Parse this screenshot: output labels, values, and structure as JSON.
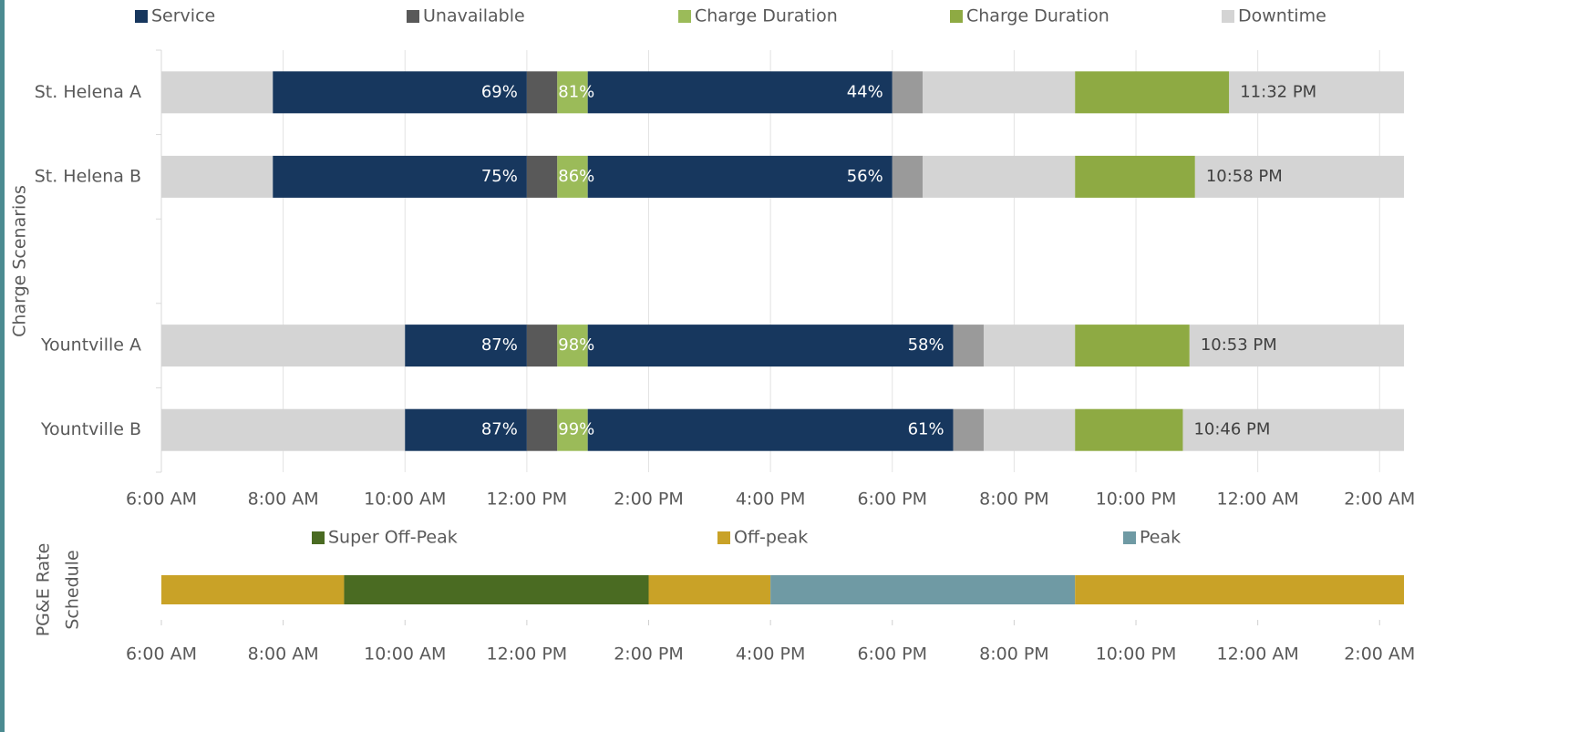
{
  "chart_data": [
    {
      "type": "timeline",
      "series": [
        {
          "name": "Service",
          "color": "#17375e"
        },
        {
          "name": "Unavailable",
          "color": "#595959"
        },
        {
          "name": "Charge Duration",
          "color": "#9bbb59"
        },
        {
          "name": "Charge Duration",
          "color": "#8eaa43"
        },
        {
          "name": "Downtime",
          "color": "#d4d4d4"
        }
      ],
      "ylabel": [
        "Charge Scenarios"
      ],
      "categories": [
        "St. Helena A",
        "St. Helena B",
        null,
        "Yountville A",
        "Yountville B"
      ],
      "xlim": [
        6,
        26.4
      ],
      "xticks": [
        {
          "value": 6,
          "label": "6:00 AM"
        },
        {
          "value": 8,
          "label": "8:00 AM"
        },
        {
          "value": 10,
          "label": "10:00 AM"
        },
        {
          "value": 12,
          "label": "12:00 PM"
        },
        {
          "value": 14,
          "label": "2:00 PM"
        },
        {
          "value": 16,
          "label": "4:00 PM"
        },
        {
          "value": 18,
          "label": "6:00 PM"
        },
        {
          "value": 20,
          "label": "8:00 PM"
        },
        {
          "value": 22,
          "label": "10:00 PM"
        },
        {
          "value": 24,
          "label": "12:00 AM"
        },
        {
          "value": 26,
          "label": "2:00 AM"
        }
      ],
      "grid": true,
      "rows": [
        [
          {
            "s": 4,
            "start": 6,
            "end": 7.83
          },
          {
            "s": 0,
            "start": 7.83,
            "end": 12,
            "label": "69%"
          },
          {
            "s": 1,
            "start": 12,
            "end": 12.5
          },
          {
            "s": 2,
            "start": 12.5,
            "end": 13,
            "label": "81%"
          },
          {
            "s": 0,
            "start": 13,
            "end": 18,
            "label": "44%"
          },
          {
            "s": 1,
            "start": 18,
            "end": 18.5,
            "color": "#9a9a9a"
          },
          {
            "s": 4,
            "start": 18.5,
            "end": 21
          },
          {
            "s": 3,
            "start": 21,
            "end": 23.53,
            "label": "11:32 PM"
          },
          {
            "s": 4,
            "start": 23.53,
            "end": 26.4
          }
        ],
        [
          {
            "s": 4,
            "start": 6,
            "end": 7.83
          },
          {
            "s": 0,
            "start": 7.83,
            "end": 12,
            "label": "75%"
          },
          {
            "s": 1,
            "start": 12,
            "end": 12.5
          },
          {
            "s": 2,
            "start": 12.5,
            "end": 13,
            "label": "86%"
          },
          {
            "s": 0,
            "start": 13,
            "end": 18,
            "label": "56%"
          },
          {
            "s": 1,
            "start": 18,
            "end": 18.5,
            "color": "#9a9a9a"
          },
          {
            "s": 4,
            "start": 18.5,
            "end": 21
          },
          {
            "s": 3,
            "start": 21,
            "end": 22.97,
            "label": "10:58 PM"
          },
          {
            "s": 4,
            "start": 22.97,
            "end": 26.4
          }
        ],
        [],
        [
          {
            "s": 4,
            "start": 6,
            "end": 10
          },
          {
            "s": 0,
            "start": 10,
            "end": 12,
            "label": "87%"
          },
          {
            "s": 1,
            "start": 12,
            "end": 12.5
          },
          {
            "s": 2,
            "start": 12.5,
            "end": 13,
            "label": "98%"
          },
          {
            "s": 0,
            "start": 13,
            "end": 19,
            "label": "58%"
          },
          {
            "s": 1,
            "start": 19,
            "end": 19.5,
            "color": "#9a9a9a"
          },
          {
            "s": 4,
            "start": 19.5,
            "end": 21
          },
          {
            "s": 3,
            "start": 21,
            "end": 22.88,
            "label": "10:53 PM"
          },
          {
            "s": 4,
            "start": 22.88,
            "end": 26.4
          }
        ],
        [
          {
            "s": 4,
            "start": 6,
            "end": 10
          },
          {
            "s": 0,
            "start": 10,
            "end": 12,
            "label": "87%"
          },
          {
            "s": 1,
            "start": 12,
            "end": 12.5
          },
          {
            "s": 2,
            "start": 12.5,
            "end": 13,
            "label": "99%"
          },
          {
            "s": 0,
            "start": 13,
            "end": 19,
            "label": "61%"
          },
          {
            "s": 1,
            "start": 19,
            "end": 19.5,
            "color": "#9a9a9a"
          },
          {
            "s": 4,
            "start": 19.5,
            "end": 21
          },
          {
            "s": 3,
            "start": 21,
            "end": 22.77,
            "label": "10:46 PM"
          },
          {
            "s": 4,
            "start": 22.77,
            "end": 26.4
          }
        ]
      ]
    },
    {
      "type": "timeline",
      "series": [
        {
          "name": "Super Off-Peak",
          "color": "#4a6b22"
        },
        {
          "name": "Off-peak",
          "color": "#c9a227"
        },
        {
          "name": "Peak",
          "color": "#6f9aa4"
        }
      ],
      "ylabel": [
        "PG&E Rate",
        "Schedule"
      ],
      "categories": [
        null
      ],
      "xlim": [
        6,
        26.4
      ],
      "xticks": [
        {
          "value": 6,
          "label": "6:00 AM"
        },
        {
          "value": 8,
          "label": "8:00 AM"
        },
        {
          "value": 10,
          "label": "10:00 AM"
        },
        {
          "value": 12,
          "label": "12:00 PM"
        },
        {
          "value": 14,
          "label": "2:00 PM"
        },
        {
          "value": 16,
          "label": "4:00 PM"
        },
        {
          "value": 18,
          "label": "6:00 PM"
        },
        {
          "value": 20,
          "label": "8:00 PM"
        },
        {
          "value": 22,
          "label": "10:00 PM"
        },
        {
          "value": 24,
          "label": "12:00 AM"
        },
        {
          "value": 26,
          "label": "2:00 AM"
        }
      ],
      "grid": false,
      "rows": [
        [
          {
            "s": 1,
            "start": 6,
            "end": 9
          },
          {
            "s": 0,
            "start": 9,
            "end": 14
          },
          {
            "s": 1,
            "start": 14,
            "end": 16
          },
          {
            "s": 2,
            "start": 16,
            "end": 21
          },
          {
            "s": 1,
            "start": 21,
            "end": 26.4
          }
        ]
      ]
    }
  ]
}
